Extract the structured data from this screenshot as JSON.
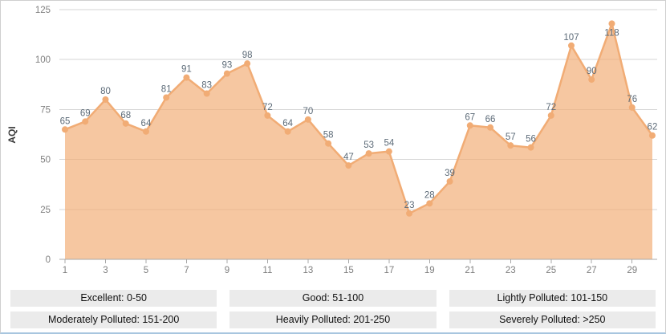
{
  "page": {
    "background": "#ffffff",
    "border_color": "#cfcfcf",
    "bottom_border_color": "#a8c6df"
  },
  "chart_data": {
    "type": "area",
    "title": "",
    "xlabel": "",
    "ylabel": "AQI",
    "x": [
      1,
      2,
      3,
      4,
      5,
      6,
      7,
      8,
      9,
      10,
      11,
      12,
      13,
      14,
      15,
      16,
      17,
      18,
      19,
      20,
      21,
      22,
      23,
      24,
      25,
      26,
      27,
      28,
      29,
      30
    ],
    "values": [
      65,
      69,
      80,
      68,
      64,
      81,
      91,
      83,
      93,
      98,
      72,
      64,
      70,
      58,
      47,
      53,
      54,
      23,
      28,
      39,
      67,
      66,
      57,
      56,
      72,
      107,
      90,
      118,
      76,
      62
    ],
    "xticks": [
      1,
      3,
      5,
      7,
      9,
      11,
      13,
      15,
      17,
      19,
      21,
      23,
      25,
      27,
      29
    ],
    "yticks": [
      0,
      25,
      50,
      75,
      100,
      125
    ],
    "ylim": [
      0,
      125
    ],
    "grid": true,
    "point_labels": true,
    "legend_position": "bottom",
    "colors": {
      "line": "#f1ac75",
      "fill": "rgba(241,172,117,0.68)",
      "marker": "#f1ac75",
      "point_label": "#5d6b78",
      "tick_label": "#7f7f7f",
      "axis": "#a8a8a8",
      "gridline": "#d6d6d6",
      "ylabel_text": "#3c3c3c"
    }
  },
  "legend": {
    "background": "#ebebeb",
    "text_color": "#111111",
    "items": [
      {
        "id": "excellent",
        "label": "Excellent: 0-50"
      },
      {
        "id": "good",
        "label": "Good: 51-100"
      },
      {
        "id": "lightly-polluted",
        "label": "Lightly Polluted: 101-150"
      },
      {
        "id": "moderately-polluted",
        "label": "Moderately Polluted: 151-200"
      },
      {
        "id": "heavily-polluted",
        "label": "Heavily Polluted: 201-250"
      },
      {
        "id": "severely-polluted",
        "label": "Severely Polluted: >250"
      }
    ]
  }
}
